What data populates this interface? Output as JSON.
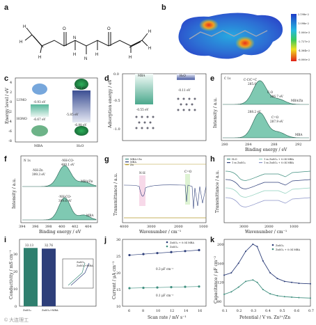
{
  "panels": {
    "a": {
      "label": "a",
      "atoms": [
        "H",
        "H",
        "H",
        "H",
        "H",
        "H",
        "H",
        "H",
        "O",
        "O",
        "N",
        "N"
      ]
    },
    "b": {
      "label": "b",
      "colorbar": {
        "ticks": [
          "2.198e-2",
          "1.098e-2",
          "-1.000e-3",
          "-2.727e-2",
          "-4.364e-2",
          "-6.000e-2"
        ]
      }
    },
    "c": {
      "label": "c",
      "ylabel": "Energy level / eV",
      "yticks": [
        "4",
        "2",
        "0",
        "-2",
        "-4",
        "-6",
        "-8"
      ],
      "xcats": [
        "MBA",
        "H₂O"
      ],
      "levels": [
        "LUMO",
        "HOMO"
      ],
      "values": [
        "-0.93 eV",
        "-6.67 eV",
        "-5.85 eV",
        "0.25 eV",
        "-6.98 eV"
      ]
    },
    "d": {
      "label": "d",
      "ylabel": "Adsorption energy / eV",
      "yticks": [
        "0.0",
        "-0.5",
        "-1.0"
      ],
      "chart_data": {
        "type": "bar",
        "categories": [
          "MBA",
          "H₂O"
        ],
        "values": [
          -0.55,
          -0.11
        ],
        "ylim": [
          -1.2,
          0.0
        ]
      },
      "value_labels": [
        "-0.55 eV",
        "-0.11 eV"
      ]
    },
    "e": {
      "label": "e",
      "title": "C 1s",
      "xlabel": "Binding energy / eV",
      "ylabel": "Intensity / a.u.",
      "xticks": [
        "280",
        "284",
        "288",
        "292"
      ],
      "samples": [
        "MBA/Zn",
        "MBA"
      ],
      "peaks": [
        "C-C/C=C",
        "C-O",
        "285.0",
        "286.7 eV",
        "C=O",
        "287.9 eV",
        "288.2 eV"
      ],
      "chart_data": {
        "type": "line",
        "xlim": [
          279,
          293
        ],
        "series": [
          {
            "name": "MBA/Zn",
            "center": 285.0
          },
          {
            "name": "MBA",
            "center": 285.0
          }
        ]
      }
    },
    "f": {
      "label": "f",
      "title": "N 1s",
      "xlabel": "Binding energy / eV",
      "ylabel": "Intensity / a.u.",
      "xticks": [
        "394",
        "396",
        "398",
        "400",
        "402",
        "404"
      ],
      "samples": [
        "MBA/Zn",
        "MBA"
      ],
      "peaks": [
        "-NH-CO-",
        "400.1 eV",
        "-NH-CO-",
        "399.6 eV",
        "-NH-Zn",
        "399.3 eV"
      ],
      "chart_data": {
        "type": "line",
        "xlim": [
          393.5,
          405
        ],
        "series": [
          {
            "name": "MBA/Zn",
            "center": 400.1
          },
          {
            "name": "MBA",
            "center": 400.1
          }
        ]
      }
    },
    "g": {
      "label": "g",
      "xlabel": "Wavenumber / cm⁻¹",
      "ylabel": "Transmittance / a.u.",
      "xticks": [
        "4000",
        "3000",
        "2000",
        "1000"
      ],
      "legend": [
        "MBA+Zn",
        "MBA",
        "Zn"
      ],
      "bands": [
        "N-H",
        "C=O"
      ],
      "chart_data": {
        "type": "line",
        "xlim": [
          4000,
          1000
        ]
      }
    },
    "h": {
      "label": "h",
      "xlabel": "Wavenumber / cm⁻¹",
      "ylabel": "Transmittance / a.u.",
      "xticks": [
        "3000",
        "2000",
        "1000"
      ],
      "legend": [
        "H₂O",
        "1 m ZnSO₄",
        "1 m ZnSO₄ + 0.04 MBA",
        "1 m ZnSO₄ + 0.04 MBA"
      ],
      "chart_data": {
        "type": "line",
        "xlim": [
          4000,
          500
        ]
      }
    },
    "i": {
      "label": "i",
      "ylabel": "Conductivity / mS cm⁻¹",
      "yticks": [
        "0",
        "10",
        "20",
        "30"
      ],
      "chart_data": {
        "type": "bar",
        "categories": [
          "ZnSO₄",
          "ZnSO₄+MBA"
        ],
        "values": [
          33.13,
          32.76
        ],
        "ylim": [
          0,
          38
        ]
      },
      "value_labels": [
        "33.13",
        "32.76"
      ],
      "inset_legend": [
        "ZnSO₄",
        "ZnSO₄+MBA"
      ]
    },
    "j": {
      "label": "j",
      "xlabel": "Scan rate / mV s⁻¹",
      "ylabel": "Current / μA cm⁻²",
      "xticks": [
        "6",
        "8",
        "10",
        "12",
        "14",
        "16"
      ],
      "yticks": [
        "10",
        "15",
        "20",
        "25",
        "30"
      ],
      "legend": [
        "ZnSO₄ + 0.04 MBA",
        "ZnSO₄"
      ],
      "slopes": [
        "0.3 μF cm⁻²",
        "0.1 μF cm⁻²"
      ],
      "chart_data": {
        "type": "scatter",
        "x": [
          6,
          8,
          10,
          12,
          14,
          16
        ],
        "xlim": [
          5,
          17
        ],
        "ylim": [
          10,
          30
        ],
        "series": [
          {
            "name": "ZnSO₄ + 0.04 MBA",
            "values": [
              25.3,
              25.6,
              25.9,
              26.2,
              26.5,
              26.8
            ]
          },
          {
            "name": "ZnSO₄",
            "values": [
              15.4,
              15.5,
              15.6,
              15.7,
              15.8,
              15.9
            ]
          }
        ]
      }
    },
    "k": {
      "label": "k",
      "xlabel": "Potential / V vs. Zn²⁺/Zn",
      "ylabel": "Capacitance / μF cm⁻²",
      "xticks": [
        "0.1",
        "0.2",
        "0.3",
        "0.4",
        "0.5",
        "0.6",
        "0.7"
      ],
      "yticks": [
        "80",
        "120",
        "160",
        "200"
      ],
      "legend": [
        "ZnSO₄",
        "ZnSO₄ + 0.04 MBA"
      ],
      "chart_data": {
        "type": "line",
        "xlim": [
          0.1,
          0.7
        ],
        "ylim": [
          70,
          210
        ],
        "x": [
          0.1,
          0.15,
          0.2,
          0.25,
          0.3,
          0.33,
          0.37,
          0.42,
          0.47,
          0.52,
          0.57,
          0.62,
          0.7
        ],
        "series": [
          {
            "name": "ZnSO₄",
            "values": [
              135,
              140,
              160,
              185,
              200,
              195,
              165,
              140,
              128,
              122,
              120,
              118,
              117
            ]
          },
          {
            "name": "ZnSO₄ + 0.04 MBA",
            "values": [
              95,
              100,
              110,
              122,
              125,
              120,
              105,
              96,
              92,
              90,
              89,
              88,
              87
            ]
          }
        ]
      }
    }
  },
  "watermark": "© 大连理工",
  "colors": {
    "teal": "#3f8f7f",
    "navy": "#2e3f7a",
    "lightteal": "#8fd0bd",
    "gold": "#b59a2a"
  }
}
